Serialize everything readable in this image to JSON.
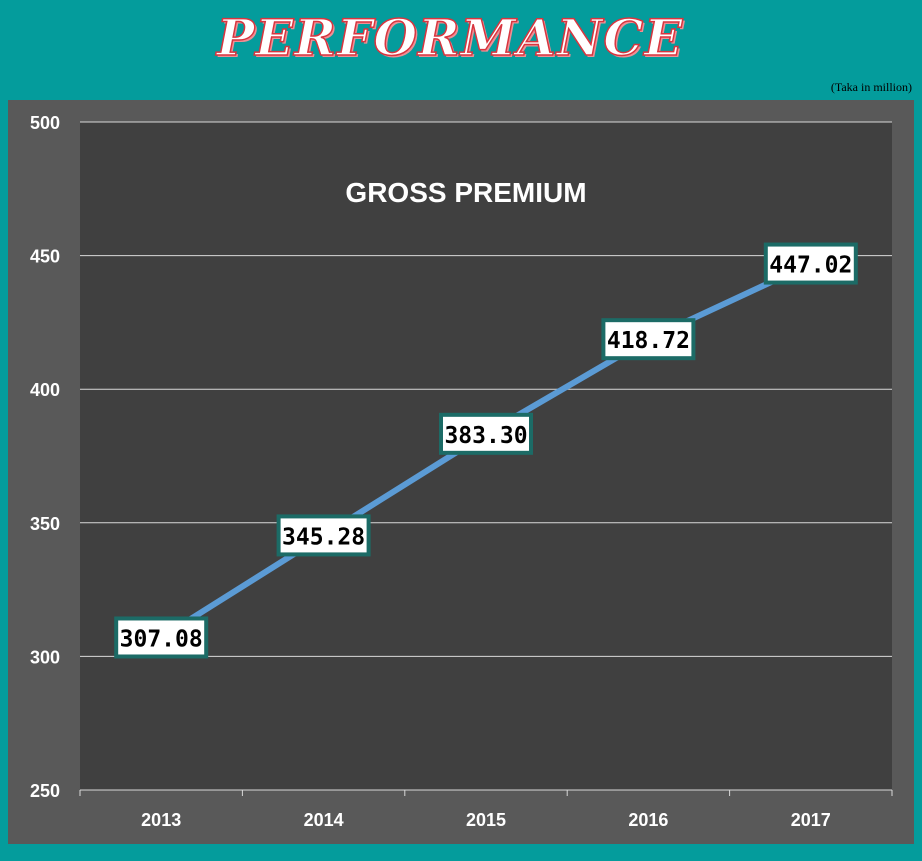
{
  "header": {
    "title": "PERFORMANCE",
    "unit_note": "(Taka in million)"
  },
  "chart_data": {
    "type": "line",
    "title": "GROSS PREMIUM",
    "categories": [
      "2013",
      "2014",
      "2015",
      "2016",
      "2017"
    ],
    "values": [
      307.08,
      345.28,
      383.3,
      418.72,
      447.02
    ],
    "data_labels": [
      "307.08",
      "345.28",
      "383.30",
      "418.72",
      "447.02"
    ],
    "ylim": [
      250,
      500
    ],
    "y_ticks": [
      250,
      300,
      350,
      400,
      450,
      500
    ],
    "grid": true,
    "legend": "none",
    "colors": {
      "line": "#5b9bd5",
      "plot_background": "#404040",
      "frame_background": "#595959",
      "label_border": "#1c6b66",
      "label_fill": "#ffffff",
      "page_background": "#049c9c"
    }
  }
}
